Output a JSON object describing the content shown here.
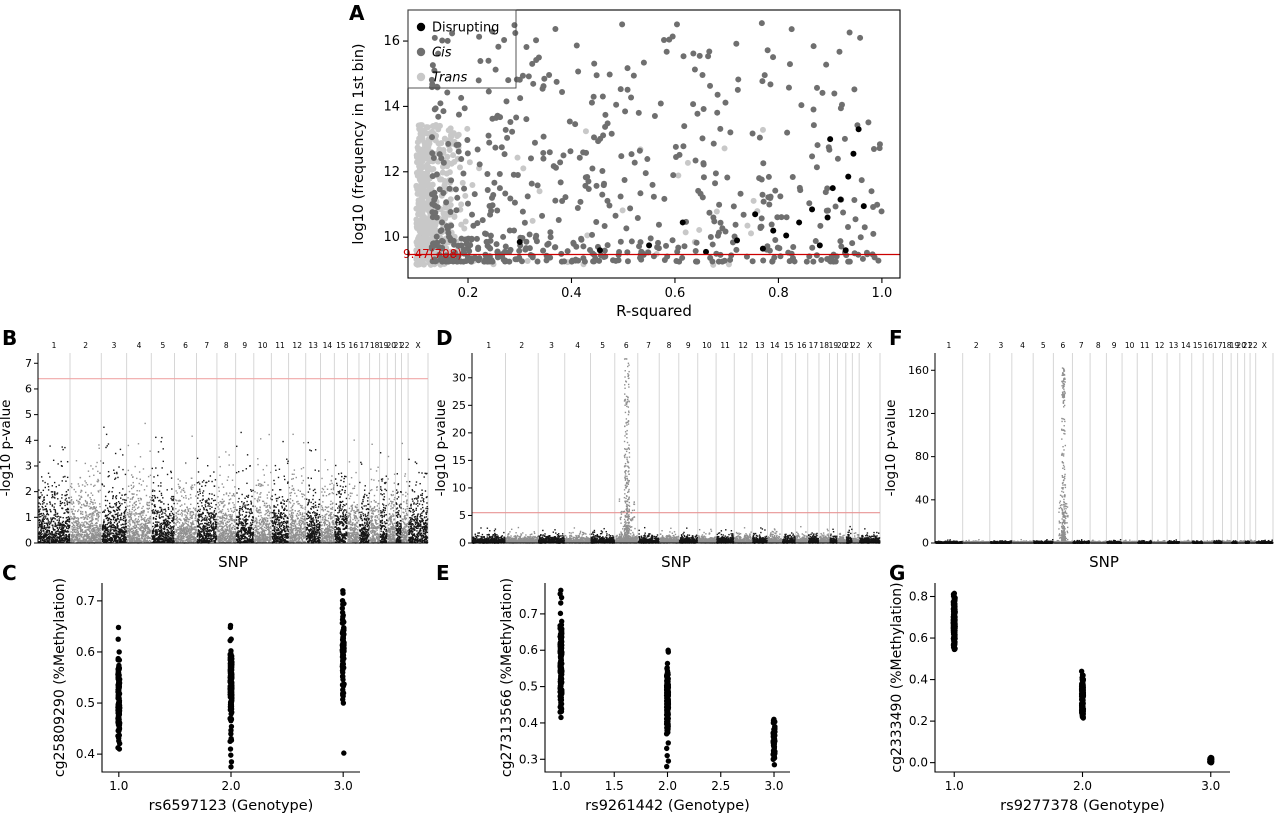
{
  "panel_labels": [
    "A",
    "B",
    "C",
    "D",
    "E",
    "F",
    "G"
  ],
  "chart_data": [
    {
      "id": "A",
      "type": "scatter",
      "xlabel": "R-squared",
      "ylabel": "log10 (frequency in 1st bin)",
      "xlim": [
        0.084,
        1.035
      ],
      "ylim": [
        8.75,
        16.95
      ],
      "xticks": [
        "0.2",
        "0.4",
        "0.6",
        "0.8",
        "1.0"
      ],
      "yticks": [
        "10",
        "12",
        "14",
        "16"
      ],
      "hline": {
        "y": 9.47,
        "label": "9.47(708)",
        "color": "#cc0000"
      },
      "legend": [
        {
          "label": "Disrupting",
          "color": "#000000",
          "italic": false
        },
        {
          "label": "Cis",
          "color": "#6f6f6f",
          "italic": true
        },
        {
          "label": "Trans",
          "color": "#c8c8c8",
          "italic": true
        }
      ],
      "series": [
        {
          "name": "Trans",
          "color": "#c8c8c8",
          "gen": {
            "kind": "halfnorm",
            "n": 560,
            "x_base": 0.1,
            "x_hsd": 0.04,
            "x_uni_frac": 0.06,
            "x_uni_min": 0.22,
            "x_uni_max": 0.78,
            "y_base": 9.15,
            "y_span": 4.3,
            "y_pow": 1.35
          }
        },
        {
          "name": "Cis",
          "color": "#6f6f6f",
          "gen": {
            "kind": "powspread",
            "n": 640,
            "x_min": 0.13,
            "x_max": 1.0,
            "x_pow": 1.5,
            "y_base": 9.25,
            "y_span": 7.3,
            "y_pow": 2.4
          }
        },
        {
          "name": "Disrupting",
          "color": "#000000",
          "points": [
            [
              0.3,
              9.85
            ],
            [
              0.455,
              9.6
            ],
            [
              0.55,
              9.75
            ],
            [
              0.615,
              10.45
            ],
            [
              0.66,
              9.55
            ],
            [
              0.72,
              9.9
            ],
            [
              0.755,
              10.7
            ],
            [
              0.77,
              9.65
            ],
            [
              0.79,
              10.2
            ],
            [
              0.815,
              10.05
            ],
            [
              0.84,
              10.45
            ],
            [
              0.865,
              10.85
            ],
            [
              0.88,
              9.75
            ],
            [
              0.895,
              10.6
            ],
            [
              0.905,
              11.5
            ],
            [
              0.92,
              11.15
            ],
            [
              0.935,
              11.85
            ],
            [
              0.945,
              12.55
            ],
            [
              0.955,
              13.3
            ],
            [
              0.965,
              10.95
            ],
            [
              0.9,
              13.0
            ],
            [
              0.93,
              9.6
            ]
          ]
        }
      ]
    },
    {
      "id": "B",
      "type": "manhattan",
      "xlabel": "SNP",
      "ylabel": "-log10 p-value",
      "ylim": [
        0,
        7.4
      ],
      "yticks": [
        "0",
        "1",
        "2",
        "3",
        "4",
        "5",
        "6",
        "7"
      ],
      "chromosomes": [
        "1",
        "2",
        "3",
        "4",
        "5",
        "6",
        "7",
        "8",
        "9",
        "10",
        "11",
        "12",
        "13",
        "14",
        "15",
        "16",
        "17",
        "18",
        "19",
        "20",
        "21",
        "22",
        "X"
      ],
      "chrom_weights": [
        249,
        243,
        198,
        191,
        181,
        171,
        159,
        146,
        141,
        136,
        135,
        133,
        115,
        107,
        102,
        90,
        83,
        78,
        59,
        63,
        48,
        51,
        155
      ],
      "point_colors": [
        "#161616",
        "#909090"
      ],
      "grid_color": "#cccccc",
      "threshold": {
        "y": 6.4,
        "color": "#f0a8a8"
      },
      "baseline": {
        "n": 8200,
        "scale": 1.5,
        "max": 4.7
      },
      "peaks": []
    },
    {
      "id": "D",
      "type": "manhattan",
      "xlabel": "SNP",
      "ylabel": "-log10 p-value",
      "ylim": [
        0,
        34.5
      ],
      "yticks": [
        "0",
        "5",
        "10",
        "15",
        "20",
        "25",
        "30"
      ],
      "chromosomes": [
        "1",
        "2",
        "3",
        "4",
        "5",
        "6",
        "7",
        "8",
        "9",
        "10",
        "11",
        "12",
        "13",
        "14",
        "15",
        "16",
        "17",
        "18",
        "19",
        "20",
        "21",
        "22",
        "X"
      ],
      "chrom_weights": [
        249,
        243,
        198,
        191,
        181,
        171,
        159,
        146,
        141,
        136,
        135,
        133,
        115,
        107,
        102,
        90,
        83,
        78,
        59,
        63,
        48,
        51,
        155
      ],
      "point_colors": [
        "#161616",
        "#909090"
      ],
      "grid_color": "#cccccc",
      "threshold": {
        "y": 5.5,
        "color": "#e89494"
      },
      "baseline": {
        "n": 8200,
        "scale": 0.9,
        "max": 3.4
      },
      "peaks": [
        {
          "chrom": "6",
          "n": 330,
          "y_min": 0.5,
          "y_max": 33.5,
          "pow": 3.0,
          "width_frac": 0.22
        },
        {
          "chrom": "6",
          "n": 90,
          "y_min": 0.5,
          "y_max": 8.5,
          "pow": 1.4,
          "width_frac": 0.7
        }
      ]
    },
    {
      "id": "F",
      "type": "manhattan",
      "xlabel": "SNP",
      "ylabel": "-log10 p-value",
      "ylim": [
        0,
        176
      ],
      "yticks": [
        "0",
        "40",
        "80",
        "120",
        "160"
      ],
      "chromosomes": [
        "1",
        "2",
        "3",
        "4",
        "5",
        "6",
        "7",
        "8",
        "9",
        "10",
        "11",
        "12",
        "13",
        "14",
        "15",
        "16",
        "17",
        "18",
        "19",
        "20",
        "21",
        "22",
        "X"
      ],
      "chrom_weights": [
        249,
        243,
        198,
        191,
        181,
        171,
        159,
        146,
        141,
        136,
        135,
        133,
        115,
        107,
        102,
        90,
        83,
        78,
        59,
        63,
        48,
        51,
        155
      ],
      "point_colors": [
        "#161616",
        "#909090"
      ],
      "grid_color": "#cccccc",
      "threshold": null,
      "baseline": {
        "n": 8200,
        "scale": 0.9,
        "max": 3.4
      },
      "peaks": [
        {
          "chrom": "6",
          "n": 300,
          "y_min": 2,
          "y_max": 163,
          "pow": 4.5,
          "width_frac": 0.2
        },
        {
          "chrom": "6",
          "n": 45,
          "y_min": 125,
          "y_max": 162,
          "pow": 1.0,
          "width_frac": 0.12
        },
        {
          "chrom": "6",
          "n": 70,
          "y_min": 3,
          "y_max": 45,
          "pow": 1.4,
          "width_frac": 0.5
        }
      ]
    },
    {
      "id": "C",
      "type": "strip",
      "xlabel": "rs6597123 (Genotype)",
      "ylabel": "cg25809290 (%Methylation)",
      "xlim": [
        0.85,
        3.15
      ],
      "xticks": [
        "1.0",
        "2.0",
        "3.0"
      ],
      "ylim": [
        0.365,
        0.735
      ],
      "yticks": [
        "0.4",
        "0.5",
        "0.6",
        "0.7"
      ],
      "groups": [
        {
          "x": 1,
          "n": 130,
          "mean": 0.5,
          "sd": 0.042,
          "min": 0.41,
          "max": 0.6,
          "outliers": [
            0.625,
            0.648
          ]
        },
        {
          "x": 2,
          "n": 150,
          "mean": 0.535,
          "sd": 0.045,
          "min": 0.425,
          "max": 0.648,
          "outliers": [
            0.375,
            0.385,
            0.398,
            0.41,
            0.652
          ]
        },
        {
          "x": 3,
          "n": 100,
          "mean": 0.615,
          "sd": 0.05,
          "min": 0.5,
          "max": 0.715,
          "outliers": [
            0.402,
            0.72
          ]
        }
      ]
    },
    {
      "id": "E",
      "type": "strip",
      "xlabel": "rs9261442 (Genotype)",
      "ylabel": "cg27313566 (%Methylation)",
      "xlim": [
        0.85,
        3.15
      ],
      "xticks": [
        "1.0",
        "1.5",
        "2.0",
        "2.5",
        "3.0"
      ],
      "ylim": [
        0.265,
        0.785
      ],
      "yticks": [
        "0.3",
        "0.4",
        "0.5",
        "0.6",
        "0.7"
      ],
      "groups": [
        {
          "x": 1,
          "n": 160,
          "mean": 0.565,
          "sd": 0.065,
          "min": 0.43,
          "max": 0.73,
          "outliers": [
            0.745,
            0.755,
            0.765,
            0.415
          ]
        },
        {
          "x": 2,
          "n": 150,
          "mean": 0.465,
          "sd": 0.05,
          "min": 0.37,
          "max": 0.595,
          "outliers": [
            0.28,
            0.295,
            0.31,
            0.33,
            0.345,
            0.6
          ]
        },
        {
          "x": 3,
          "n": 60,
          "mean": 0.355,
          "sd": 0.028,
          "min": 0.3,
          "max": 0.41,
          "outliers": [
            0.285
          ]
        }
      ]
    },
    {
      "id": "G",
      "type": "strip",
      "xlabel": "rs9277378 (Genotype)",
      "ylabel": "cg2333490 (%Methylation)",
      "xlim": [
        0.85,
        3.15
      ],
      "xticks": [
        "1.0",
        "2.0",
        "3.0"
      ],
      "ylim": [
        -0.045,
        0.865
      ],
      "yticks": [
        "0.0",
        "0.2",
        "0.4",
        "0.6",
        "0.8"
      ],
      "groups": [
        {
          "x": 1,
          "n": 170,
          "mean": 0.675,
          "sd": 0.065,
          "min": 0.545,
          "max": 0.815,
          "outliers": []
        },
        {
          "x": 2,
          "n": 110,
          "mean": 0.325,
          "sd": 0.055,
          "min": 0.215,
          "max": 0.44,
          "outliers": []
        },
        {
          "x": 3,
          "n": 45,
          "mean": 0.008,
          "sd": 0.007,
          "min": 0.0,
          "max": 0.025,
          "outliers": []
        }
      ]
    }
  ]
}
